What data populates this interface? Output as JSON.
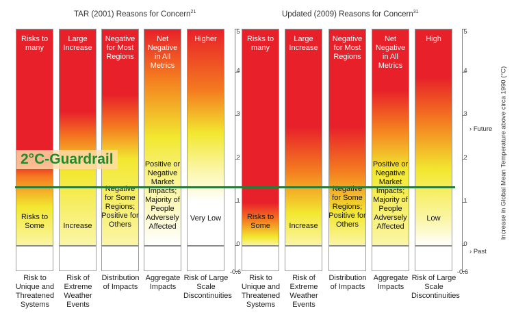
{
  "titles": {
    "left": "TAR (2001) Reasons for Concern",
    "left_sup": "21",
    "right": "Updated (2009) Reasons for Concern",
    "right_sup": "31"
  },
  "guardrail": {
    "label": "2°C-Guardrail",
    "value": 1.35,
    "color": "#2a7a3a"
  },
  "axis": {
    "title": "Increase in Global Mean Temperature above circa 1990 (°C)",
    "ymin": -0.6,
    "ymax": 5,
    "ticks": [
      "5",
      "4",
      "3",
      "2",
      "1",
      "0",
      "-0.6"
    ],
    "future_label": "Future",
    "past_label": "Past"
  },
  "colors": {
    "red": "#e8202a",
    "orange": "#f47a20",
    "yellow": "#f2e830",
    "pale": "#fbf6a8",
    "white": "#ffffff"
  },
  "left_bars": [
    {
      "top_label": "Risks to many",
      "mid_label": "Risks to Some",
      "category": "Risk to Unique and Threatened Systems"
    },
    {
      "top_label": "Large Increase",
      "mid_label": "Increase",
      "category": "Risk of Extreme Weather Events"
    },
    {
      "top_label": "Negative for Most Regions",
      "mid_label": "Negative for Some Regions; Positive for Others",
      "category": "Distribution of Impacts"
    },
    {
      "top_label": "Net Negative in All Metrics",
      "mid_label": "Positive or Negative Market Impacts; Majority of People Adversely Affected",
      "category": "Aggregate Impacts"
    },
    {
      "top_label": "Higher",
      "mid_label": "Very Low",
      "category": "Risk of Large Scale Discontinuities"
    }
  ],
  "right_bars": [
    {
      "top_label": "Risks to many",
      "mid_label": "Risks to Some",
      "category": "Risk to Unique and Threatened Systems"
    },
    {
      "top_label": "Large Increase",
      "mid_label": "Increase",
      "category": "Risk of Extreme Weather Events"
    },
    {
      "top_label": "Negative for Most Regions",
      "mid_label": "Negative for Some Regions; Positive for Others",
      "category": "Distribution of Impacts"
    },
    {
      "top_label": "Net Negative in All Metrics",
      "mid_label": "Positive or Negative Market Impacts; Majority of People Adversely Affected",
      "category": "Aggregate Impacts"
    },
    {
      "top_label": "High",
      "mid_label": "Low",
      "category": "Risk of Large Scale Discontinuities"
    }
  ]
}
